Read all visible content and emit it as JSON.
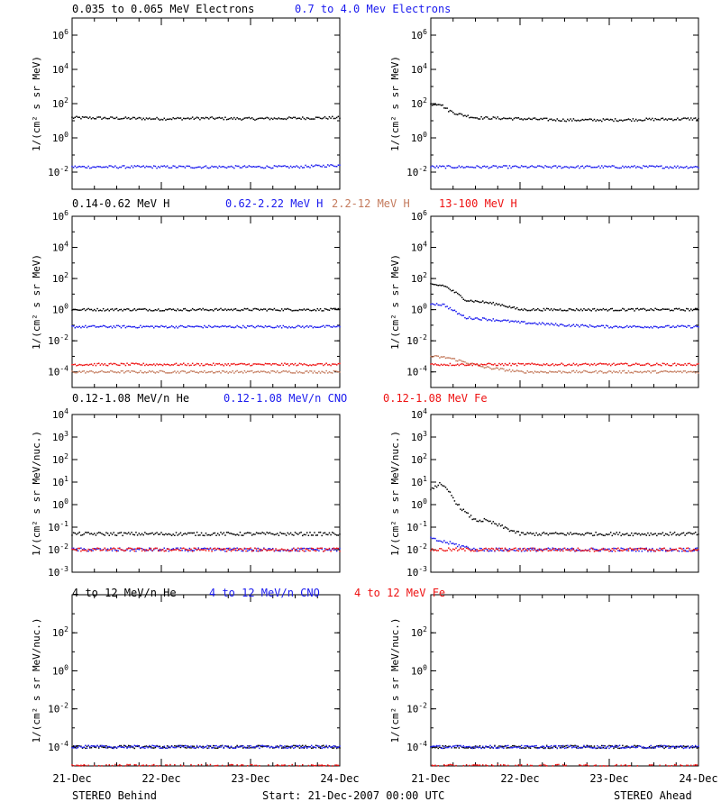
{
  "colors": {
    "black": "#000000",
    "blue": "#1a1aee",
    "tan": "#c47a5c",
    "red": "#ee1111"
  },
  "x_ticks": [
    "21-Dec",
    "22-Dec",
    "23-Dec",
    "24-Dec"
  ],
  "footer": {
    "left": "STEREO Behind",
    "center": "Start: 21-Dec-2007 00:00 UTC",
    "right": "STEREO Ahead"
  },
  "rows": [
    {
      "titles": [
        {
          "text": "0.035 to 0.065 MeV Electrons",
          "color": "black"
        },
        {
          "text": "0.7 to 4.0 Mev Electrons",
          "color": "blue"
        }
      ],
      "ylabel": "1/(cm² s sr MeV)",
      "ylabel_plain": "1/(cm2 s sr MeV)",
      "ylim": [
        -3,
        7
      ],
      "yticks": [
        "10⁻²",
        "10⁰",
        "10²",
        "10⁴",
        "10⁶"
      ],
      "ytick_exps": [
        -2,
        0,
        2,
        4,
        6
      ]
    },
    {
      "titles": [
        {
          "text": "0.14-0.62 MeV H",
          "color": "black"
        },
        {
          "text": "0.62-2.22 MeV H",
          "color": "blue"
        },
        {
          "text": "2.2-12 MeV H",
          "color": "tan"
        },
        {
          "text": "13-100 MeV H",
          "color": "red"
        }
      ],
      "ylabel": "1/(cm² s sr MeV)",
      "ylim": [
        -5,
        6
      ],
      "yticks": [
        "10⁻⁴",
        "10⁻²",
        "10⁰",
        "10²",
        "10⁴",
        "10⁶"
      ],
      "ytick_exps": [
        -4,
        -2,
        0,
        2,
        4,
        6
      ]
    },
    {
      "titles": [
        {
          "text": "0.12-1.08 MeV/n He",
          "color": "black"
        },
        {
          "text": "0.12-1.08 MeV/n CNO",
          "color": "blue"
        },
        {
          "text": "0.12-1.08 MeV Fe",
          "color": "red"
        }
      ],
      "ylabel": "1/(cm² s sr MeV/nuc.)",
      "ylim": [
        -3,
        4
      ],
      "yticks": [
        "10⁻³",
        "10⁻²",
        "10⁻¹",
        "10⁰",
        "10¹",
        "10²",
        "10³",
        "10⁴"
      ],
      "ytick_exps": [
        -3,
        -2,
        -1,
        0,
        1,
        2,
        3,
        4
      ]
    },
    {
      "titles": [
        {
          "text": "4 to 12 MeV/n He",
          "color": "black"
        },
        {
          "text": "4 to 12 MeV/n CNO",
          "color": "blue"
        },
        {
          "text": "4 to 12 MeV Fe",
          "color": "red"
        }
      ],
      "ylabel": "1/(cm² s sr MeV/nuc.)",
      "ylim": [
        -5,
        4
      ],
      "yticks": [
        "10⁻⁴",
        "10⁻²",
        "10⁰",
        "10²"
      ],
      "ytick_exps": [
        -4,
        -2,
        0,
        2
      ]
    }
  ],
  "chart_data": [
    {
      "type": "scatter",
      "panel": "STEREO Behind electrons",
      "x_unit": "days since 21-Dec-2007 00:00 UTC",
      "xlim": [
        0,
        3
      ],
      "yscale": "log",
      "ylim": [
        0.001,
        10000000
      ],
      "series": [
        {
          "name": "0.035 to 0.065 MeV Electrons",
          "color": "black",
          "x": [
            0,
            0.5,
            1,
            1.5,
            2,
            2.5,
            3
          ],
          "y": [
            15,
            14,
            13,
            14,
            13,
            14,
            15
          ]
        },
        {
          "name": "0.7 to 4.0 Mev Electrons",
          "color": "blue",
          "x": [
            0,
            0.5,
            1,
            1.5,
            2,
            2.5,
            3
          ],
          "y": [
            0.02,
            0.02,
            0.02,
            0.02,
            0.02,
            0.02,
            0.025
          ]
        }
      ]
    },
    {
      "type": "scatter",
      "panel": "STEREO Ahead electrons",
      "x_unit": "days since 21-Dec-2007 00:00 UTC",
      "xlim": [
        0,
        3
      ],
      "yscale": "log",
      "ylim": [
        0.001,
        10000000
      ],
      "series": [
        {
          "name": "0.035 to 0.065 MeV Electrons",
          "color": "black",
          "x": [
            0,
            0.1,
            0.2,
            0.3,
            0.5,
            1,
            1.5,
            2,
            2.5,
            3
          ],
          "y": [
            90,
            100,
            40,
            25,
            15,
            13,
            11,
            11,
            12,
            13
          ]
        },
        {
          "name": "0.7 to 4.0 Mev Electrons",
          "color": "blue",
          "x": [
            0,
            0.5,
            1,
            1.5,
            2,
            2.5,
            3
          ],
          "y": [
            0.02,
            0.02,
            0.02,
            0.02,
            0.02,
            0.02,
            0.02
          ]
        }
      ]
    },
    {
      "type": "scatter",
      "panel": "STEREO Behind protons",
      "x_unit": "days since 21-Dec-2007 00:00 UTC",
      "xlim": [
        0,
        3
      ],
      "yscale": "log",
      "ylim": [
        1e-05,
        1000000
      ],
      "series": [
        {
          "name": "0.14-0.62 MeV H",
          "color": "black",
          "x": [
            0,
            1,
            2,
            3
          ],
          "y": [
            1,
            1,
            1,
            1
          ]
        },
        {
          "name": "0.62-2.22 MeV H",
          "color": "blue",
          "x": [
            0,
            1,
            2,
            3
          ],
          "y": [
            0.08,
            0.08,
            0.08,
            0.08
          ]
        },
        {
          "name": "2.2-12 MeV H",
          "color": "tan",
          "x": [
            0,
            1,
            2,
            3
          ],
          "y": [
            0.0001,
            0.0001,
            0.0001,
            0.0001
          ]
        },
        {
          "name": "13-100 MeV H",
          "color": "red",
          "x": [
            0,
            1,
            2,
            3
          ],
          "y": [
            0.0003,
            0.0003,
            0.0003,
            0.0003
          ]
        }
      ]
    },
    {
      "type": "scatter",
      "panel": "STEREO Ahead protons",
      "x_unit": "days since 21-Dec-2007 00:00 UTC",
      "xlim": [
        0,
        3
      ],
      "yscale": "log",
      "ylim": [
        1e-05,
        1000000
      ],
      "series": [
        {
          "name": "0.14-0.62 MeV H",
          "color": "black",
          "x": [
            0,
            0.15,
            0.3,
            0.4,
            0.6,
            0.8,
            1.0,
            1.5,
            2,
            3
          ],
          "y": [
            40,
            35,
            10,
            4,
            3,
            2,
            1,
            1,
            1,
            1
          ]
        },
        {
          "name": "0.62-2.22 MeV H",
          "color": "blue",
          "x": [
            0,
            0.15,
            0.3,
            0.4,
            0.6,
            0.8,
            1.0,
            1.5,
            2,
            3
          ],
          "y": [
            2.5,
            2,
            0.6,
            0.3,
            0.25,
            0.2,
            0.15,
            0.1,
            0.08,
            0.08
          ]
        },
        {
          "name": "2.2-12 MeV H",
          "color": "tan",
          "x": [
            0,
            0.2,
            0.4,
            0.6,
            1,
            2,
            3
          ],
          "y": [
            0.001,
            0.0008,
            0.0004,
            0.0002,
            0.0001,
            0.0001,
            0.0001
          ]
        },
        {
          "name": "13-100 MeV H",
          "color": "red",
          "x": [
            0,
            1,
            2,
            3
          ],
          "y": [
            0.0003,
            0.0003,
            0.0003,
            0.0003
          ]
        }
      ]
    },
    {
      "type": "scatter",
      "panel": "STEREO Behind low-energy ions",
      "x_unit": "days since 21-Dec-2007 00:00 UTC",
      "xlim": [
        0,
        3
      ],
      "yscale": "log",
      "ylim": [
        0.001,
        10000
      ],
      "series": [
        {
          "name": "0.12-1.08 MeV/n He",
          "color": "black",
          "x": [
            0,
            1,
            2,
            3
          ],
          "y": [
            0.05,
            0.05,
            0.05,
            0.05
          ]
        },
        {
          "name": "0.12-1.08 MeV/n CNO",
          "color": "blue",
          "x": [
            0,
            1,
            2,
            3
          ],
          "y": [
            0.01,
            0.01,
            0.01,
            0.01
          ]
        },
        {
          "name": "0.12-1.08 MeV Fe",
          "color": "red",
          "x": [
            0,
            1,
            2,
            3
          ],
          "y": [
            0.01,
            0.01,
            0.01,
            0.01
          ]
        }
      ]
    },
    {
      "type": "scatter",
      "panel": "STEREO Ahead low-energy ions",
      "x_unit": "days since 21-Dec-2007 00:00 UTC",
      "xlim": [
        0,
        3
      ],
      "yscale": "log",
      "ylim": [
        0.001,
        10000
      ],
      "series": [
        {
          "name": "0.12-1.08 MeV/n He",
          "color": "black",
          "x": [
            0,
            0.1,
            0.2,
            0.3,
            0.4,
            0.5,
            0.6,
            0.7,
            1,
            2,
            3
          ],
          "y": [
            5,
            8,
            4,
            1,
            0.4,
            0.2,
            0.2,
            0.15,
            0.05,
            0.05,
            0.05
          ]
        },
        {
          "name": "0.12-1.08 MeV/n CNO",
          "color": "blue",
          "x": [
            0,
            0.2,
            0.5,
            1,
            2,
            3
          ],
          "y": [
            0.03,
            0.02,
            0.01,
            0.01,
            0.01,
            0.01
          ]
        },
        {
          "name": "0.12-1.08 MeV Fe",
          "color": "red",
          "x": [
            0,
            1,
            2,
            3
          ],
          "y": [
            0.01,
            0.01,
            0.01,
            0.01
          ]
        }
      ]
    },
    {
      "type": "scatter",
      "panel": "STEREO Behind high-energy ions",
      "x_unit": "days since 21-Dec-2007 00:00 UTC",
      "xlim": [
        0,
        3
      ],
      "yscale": "log",
      "ylim": [
        1e-05,
        10000
      ],
      "series": [
        {
          "name": "4 to 12 MeV/n He",
          "color": "black",
          "x": [
            0,
            1,
            2,
            3
          ],
          "y": [
            0.0001,
            0.0001,
            0.0001,
            0.0001
          ]
        },
        {
          "name": "4 to 12 MeV/n CNO",
          "color": "blue",
          "x": [
            0,
            1,
            2,
            3
          ],
          "y": [
            0.0001,
            0.0001,
            0.0001,
            0.0001
          ]
        },
        {
          "name": "4 to 12 MeV Fe",
          "color": "red",
          "x": [
            0,
            1,
            2,
            3
          ],
          "y": [
            1e-05,
            1e-05,
            1e-05,
            1e-05
          ]
        }
      ]
    },
    {
      "type": "scatter",
      "panel": "STEREO Ahead high-energy ions",
      "x_unit": "days since 21-Dec-2007 00:00 UTC",
      "xlim": [
        0,
        3
      ],
      "yscale": "log",
      "ylim": [
        1e-05,
        10000
      ],
      "series": [
        {
          "name": "4 to 12 MeV/n He",
          "color": "black",
          "x": [
            0,
            1,
            2,
            3
          ],
          "y": [
            0.0001,
            0.0001,
            0.0001,
            0.0001
          ]
        },
        {
          "name": "4 to 12 MeV/n CNO",
          "color": "blue",
          "x": [
            0,
            1,
            2,
            3
          ],
          "y": [
            0.0001,
            0.0001,
            0.0001,
            0.0001
          ]
        },
        {
          "name": "4 to 12 MeV Fe",
          "color": "red",
          "x": [
            0,
            1,
            2,
            3
          ],
          "y": [
            1e-05,
            1e-05,
            1e-05,
            1e-05
          ]
        }
      ]
    }
  ]
}
